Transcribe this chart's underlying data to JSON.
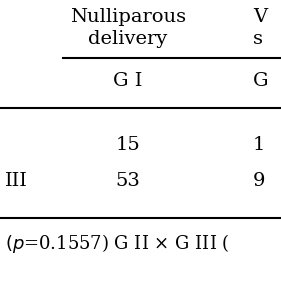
{
  "background_color": "#ffffff",
  "col2_header_line1": "Nulliparous",
  "col2_header_line2": "delivery",
  "col3_header_line1": "V",
  "col3_header_line2": "s",
  "subheader_col2": "G I",
  "subheader_col3": "G",
  "row1_col2": "15",
  "row1_col3": "1",
  "row2_col1": "III",
  "row2_col2": "53",
  "row2_col3": "9",
  "footer_italic": "(p",
  "footer_normal": "=0.1557) G II × G III (",
  "font_size": 14,
  "font_size_footer": 13
}
